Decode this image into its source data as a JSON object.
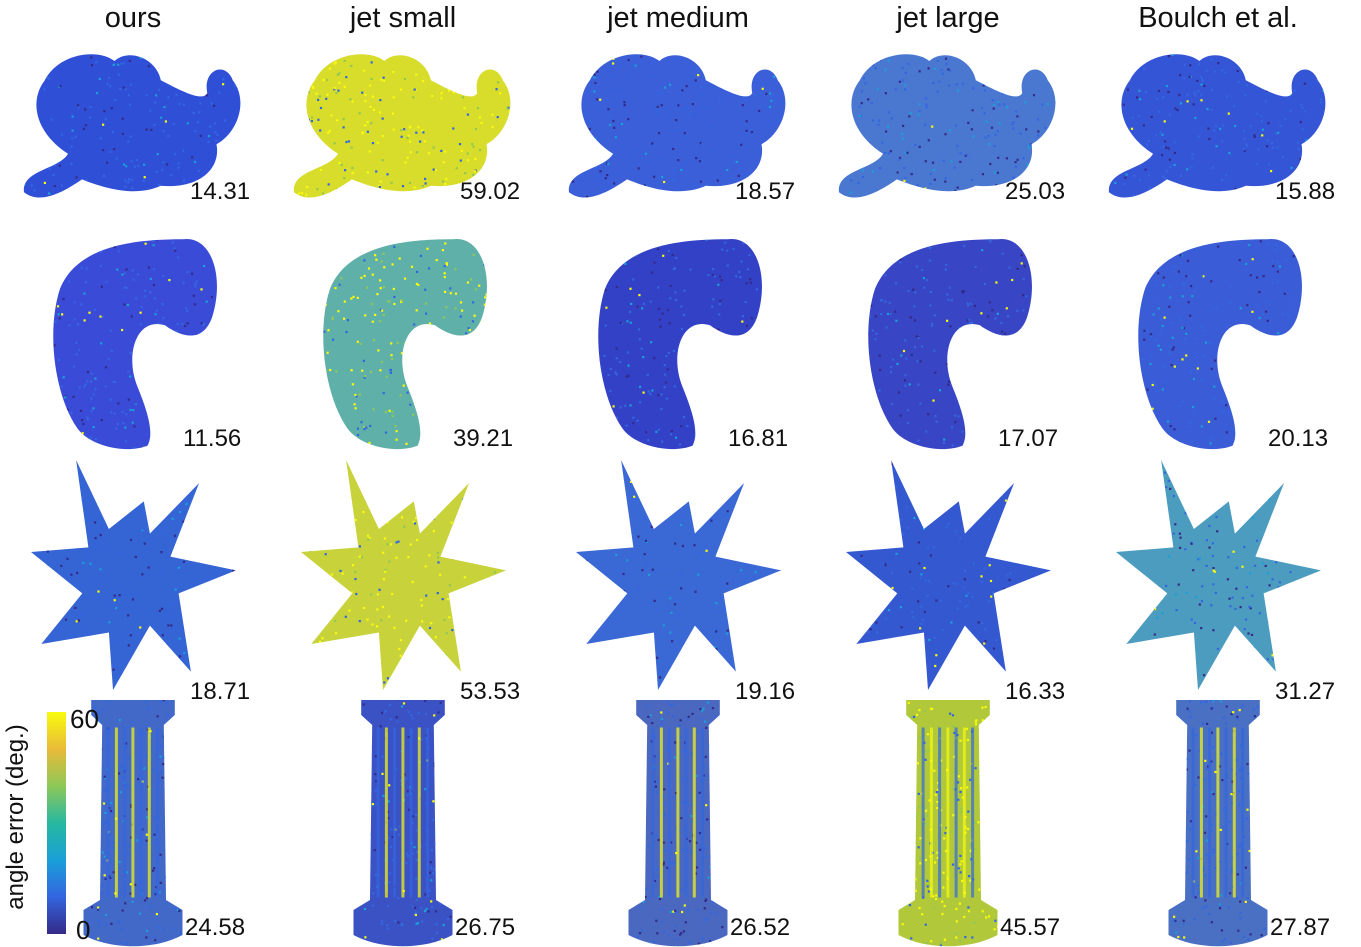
{
  "columns": [
    "ours",
    "jet small",
    "jet medium",
    "jet large",
    "Boulch et al."
  ],
  "rows": [
    {
      "shape": "dragon-figurine",
      "values": [
        "14.31",
        "59.02",
        "18.57",
        "25.03",
        "15.88"
      ],
      "mean_colors": [
        "#2f4fd6",
        "#d8dc2a",
        "#3a5fd8",
        "#4a78d0",
        "#3455d6"
      ]
    },
    {
      "shape": "bent-tube",
      "values": [
        "11.56",
        "39.21",
        "16.81",
        "17.07",
        "20.13"
      ],
      "mean_colors": [
        "#3a4bd8",
        "#5fb0a8",
        "#3341c6",
        "#3845c4",
        "#3a5cd6"
      ]
    },
    {
      "shape": "spiky-star",
      "values": [
        "18.71",
        "53.53",
        "19.16",
        "16.33",
        "31.27"
      ],
      "mean_colors": [
        "#3564d4",
        "#c8d23a",
        "#3a68d4",
        "#3458d0",
        "#4c9cc0"
      ]
    },
    {
      "shape": "fluted-column",
      "values": [
        "24.58",
        "26.75",
        "26.52",
        "45.57",
        "27.87"
      ],
      "mean_colors": [
        "#4268c8",
        "#3a52c4",
        "#4a68c0",
        "#b0c83a",
        "#4a70c4"
      ]
    }
  ],
  "colorbar": {
    "label": "angle error (deg.)",
    "min_label": "0",
    "max_label": "60",
    "colors": [
      "#352a87",
      "#3366e0",
      "#1a9fd8",
      "#27b8a0",
      "#8fc857",
      "#e8ba3a",
      "#f9fb0e"
    ]
  }
}
